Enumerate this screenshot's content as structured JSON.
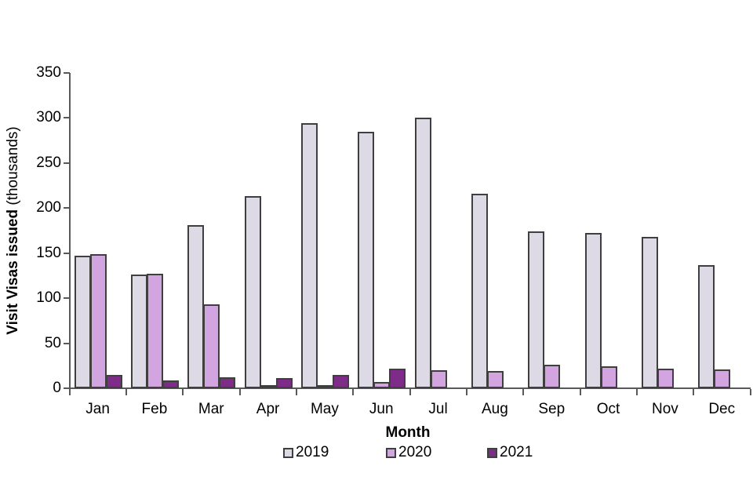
{
  "chart": {
    "y_axis": {
      "title_bold": "Visit Visas issued",
      "title_suffix": " (thousands)",
      "tick_values": [
        350,
        300,
        250,
        200,
        150,
        100,
        50,
        0
      ]
    },
    "x_axis": {
      "title": "Month"
    },
    "colors": {
      "series_2019": "#DDDAE6",
      "series_2020": "#D2A5E0",
      "series_2021": "#7D2D88",
      "bar_border": "#3F3F3F",
      "axis": "#595959",
      "text": "#000000",
      "background": "#FFFFFF"
    }
  },
  "chart_data": {
    "type": "bar",
    "title": "",
    "categories": [
      "Jan",
      "Feb",
      "Mar",
      "Apr",
      "May",
      "Jun",
      "Jul",
      "Aug",
      "Sep",
      "Oct",
      "Nov",
      "Dec"
    ],
    "series": [
      {
        "name": "2019",
        "color": "#DDDAE6",
        "values": [
          147,
          126,
          181,
          213,
          294,
          285,
          300,
          216,
          174,
          172,
          168,
          137
        ]
      },
      {
        "name": "2020",
        "color": "#D2A5E0",
        "values": [
          149,
          127,
          93,
          1,
          1,
          7,
          20,
          19,
          26,
          24,
          22,
          21
        ]
      },
      {
        "name": "2021",
        "color": "#7D2D88",
        "values": [
          15,
          9,
          12,
          11,
          15,
          22,
          null,
          null,
          null,
          null,
          null,
          null
        ]
      }
    ],
    "xlabel": "Month",
    "ylabel": "Visit Visas issued (thousands)",
    "ylim": [
      0,
      350
    ],
    "y_tick_step": 50,
    "grid": false,
    "legend_position": "bottom"
  }
}
